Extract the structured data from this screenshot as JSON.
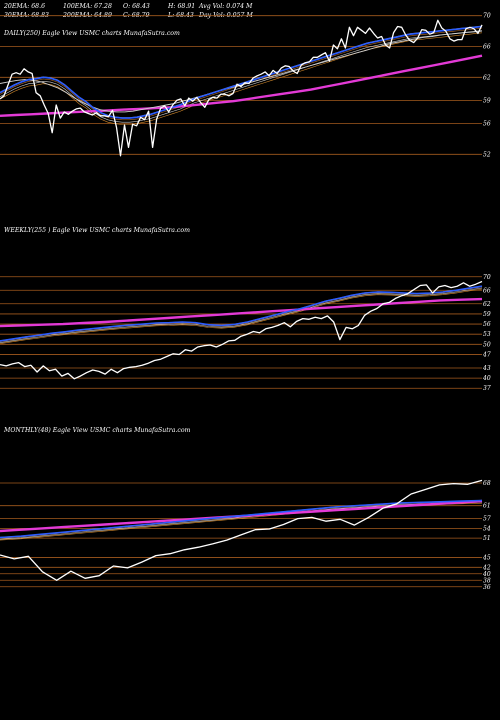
{
  "header": {
    "ema_lines": [
      [
        "20EMA: 68.6",
        "100EMA: 67.28",
        "O: 68.43",
        "H: 68.91",
        "Avg Vol: 0.074  M"
      ],
      [
        "30EMA: 68.83",
        "200EMA: 64.89",
        "C: 68.79",
        "L: 68.43",
        "Day Vol: 0.057  M"
      ]
    ]
  },
  "colors": {
    "background": "#000000",
    "price": "#ffffff",
    "ema_fast": "#2a5cff",
    "ema_slow": "#e33ad6",
    "ema_mid": "#cfcfcf",
    "ema_orange": "#d2882a",
    "level_line": "#a35a1e"
  },
  "chart_data": [
    {
      "type": "line",
      "name": "daily",
      "title": "DAILY(250) Eagle   View  USMC charts MunafaSutra.com",
      "y_ticks": [
        "70",
        "66",
        "62",
        "59",
        "56",
        "52"
      ],
      "ylim": [
        51,
        71
      ],
      "levels": [
        70,
        66,
        62,
        59,
        56,
        52
      ],
      "x_count": 250,
      "series": [
        {
          "values": [
            59.2,
            59.6,
            61.0,
            62.4,
            62.6,
            62.4,
            63.1,
            62.7,
            62.5,
            60.0,
            59.6,
            58.4,
            57.3,
            54.8,
            58.4,
            56.7,
            57.5,
            57.2,
            57.6,
            57.9,
            58.0,
            57.5,
            57.3,
            57.1,
            57.4,
            57.0,
            57.0,
            56.9,
            57.7,
            55.5,
            51.8,
            55.8,
            52.9,
            55.9,
            55.7,
            56.8,
            56.5,
            57.6,
            52.9,
            56.6,
            58.0,
            58.3,
            57.5,
            58.4,
            59.0,
            59.2,
            58.3,
            59.3,
            58.9,
            59.4,
            58.7,
            58.1,
            59.1,
            59.4,
            59.3,
            59.8,
            59.8,
            59.6,
            59.9,
            61.1,
            60.8,
            61.3,
            61.2,
            61.9,
            62.2,
            62.4,
            62.7,
            62.2,
            62.9,
            62.5,
            63.2,
            63.5,
            63.4,
            62.8,
            62.5,
            63.6,
            63.9,
            64.0,
            64.6,
            64.6,
            64.9,
            65.2,
            64.1,
            66.2,
            65.7,
            67.0,
            65.8,
            68.5,
            67.4,
            68.5,
            68.1,
            67.7,
            68.4,
            67.7,
            67.1,
            67.3,
            66.2,
            65.8,
            67.8,
            68.6,
            68.5,
            67.5,
            66.8,
            66.5,
            67.1,
            68.2,
            68.1,
            67.6,
            67.8,
            69.4,
            68.4,
            68.0,
            67.0,
            66.7,
            66.9,
            66.9,
            68.3,
            68.5,
            68.3,
            67.7,
            68.8
          ]
        },
        {
          "values": [
            60.0,
            60.5,
            61.0,
            61.4,
            61.7,
            61.8,
            62.0,
            61.9,
            61.6,
            61.0,
            60.2,
            59.4,
            58.8,
            58.0,
            57.4,
            57.0,
            56.8,
            56.7,
            56.7,
            56.8,
            57.0,
            57.2,
            57.5,
            57.8,
            58.1,
            58.4,
            58.8,
            59.2,
            59.5,
            59.8,
            60.1,
            60.4,
            60.7,
            61.0,
            61.3,
            61.6,
            61.9,
            62.2,
            62.5,
            62.8,
            63.1,
            63.4,
            63.7,
            64.0,
            64.3,
            64.6,
            64.9,
            65.2,
            65.5,
            65.8,
            66.1,
            66.4,
            66.6,
            66.8,
            67.0,
            67.2,
            67.4,
            67.6,
            67.7,
            67.8,
            67.9,
            68.0,
            68.1,
            68.2,
            68.3,
            68.4,
            68.5,
            68.6
          ]
        },
        {
          "values": [
            61.2,
            61.4,
            61.6,
            61.7,
            61.6,
            61.4,
            61.0,
            60.6,
            60.0,
            59.3,
            58.7,
            58.2,
            57.8,
            57.6,
            57.5,
            57.5,
            57.6,
            57.8,
            58.0,
            58.2,
            58.4,
            58.6,
            58.9,
            59.2,
            59.5,
            59.8,
            60.1,
            60.4,
            60.7,
            61.0,
            61.3,
            61.6,
            61.9,
            62.2,
            62.5,
            62.8,
            63.1,
            63.4,
            63.7,
            64.0,
            64.3,
            64.6,
            64.9,
            65.2,
            65.5,
            65.8,
            66.1,
            66.4,
            66.6,
            66.8,
            67.0,
            67.2,
            67.3,
            67.5,
            67.6,
            67.7,
            67.8,
            67.9,
            68.0
          ]
        },
        {
          "values": [
            57.0,
            57.1,
            57.2,
            57.3,
            57.4,
            57.5,
            57.6,
            57.7,
            57.8,
            57.9,
            58.0,
            58.1,
            58.3,
            58.5,
            58.7,
            58.9,
            59.2,
            59.5,
            59.8,
            60.1,
            60.4,
            60.8,
            61.2,
            61.6,
            62.0,
            62.4,
            62.8,
            63.2,
            63.6,
            64.0,
            64.4,
            64.8
          ]
        }
      ]
    },
    {
      "type": "line",
      "name": "weekly",
      "title": "WEEKLY(255                       ) Eagle   View  USMC charts MunafaSutra.com",
      "y_ticks": [
        "70",
        "66",
        "62",
        "59",
        "56",
        "53",
        "50",
        "47",
        "43",
        "40",
        "37"
      ],
      "ylim": [
        35,
        72
      ],
      "levels": [
        70,
        66,
        62,
        59,
        56,
        53,
        50,
        47,
        43,
        40,
        37
      ],
      "x_count": 255,
      "series": [
        {
          "values": [
            44.0,
            43.6,
            44.2,
            44.6,
            43.4,
            43.8,
            41.8,
            43.6,
            42.2,
            42.6,
            40.6,
            41.4,
            39.8,
            40.6,
            41.6,
            42.4,
            42.0,
            41.2,
            42.6,
            41.6,
            42.8,
            43.2,
            43.4,
            43.8,
            44.4,
            45.2,
            45.6,
            46.4,
            47.2,
            47.0,
            48.4,
            48.0,
            49.2,
            49.6,
            49.8,
            49.2,
            50.0,
            51.0,
            51.2,
            52.4,
            53.0,
            53.8,
            53.4,
            54.6,
            55.0,
            55.6,
            56.4,
            55.2,
            56.8,
            57.6,
            57.4,
            58.0,
            57.6,
            58.4,
            56.6,
            51.4,
            55.0,
            54.6,
            55.6,
            58.6,
            59.8,
            60.6,
            62.0,
            62.4,
            63.6,
            64.4,
            65.0,
            66.2,
            67.4,
            67.6,
            65.2,
            67.0,
            67.4,
            66.8,
            67.2,
            68.2,
            67.2,
            67.8,
            68.6
          ]
        },
        {
          "values": [
            51.0,
            51.6,
            52.2,
            52.7,
            53.3,
            53.7,
            54.2,
            54.6,
            55.0,
            55.4,
            55.7,
            56.0,
            56.3,
            56.4,
            56.6,
            56.4,
            55.8,
            55.6,
            55.9,
            56.6,
            57.6,
            58.6,
            59.6,
            60.5,
            61.6,
            62.8,
            63.6,
            64.5,
            65.2,
            65.5,
            65.4,
            65.2,
            65.0,
            65.2,
            65.5,
            66.0,
            66.6,
            67.2
          ]
        },
        {
          "values": [
            55.4,
            55.6,
            55.8,
            56.0,
            56.3,
            56.6,
            57.0,
            57.4,
            57.8,
            58.2,
            58.6,
            59.0,
            59.4,
            59.8,
            60.2,
            60.6,
            61.0,
            61.4,
            61.8,
            62.2,
            62.6,
            63.0,
            63.2,
            63.4
          ]
        }
      ]
    },
    {
      "type": "line",
      "name": "monthly",
      "title": "MONTHLY(48) Eagle   View  USMC charts MunafaSutra.com",
      "y_ticks": [
        "68",
        "61",
        "57",
        "54",
        "51",
        "45",
        "42",
        "40",
        "38",
        "36"
      ],
      "ylim": [
        35,
        72
      ],
      "levels": [
        68,
        61,
        57,
        54,
        51,
        45,
        42,
        40,
        38,
        36
      ],
      "x_count": 48,
      "series": [
        {
          "values": [
            45.8,
            44.6,
            45.4,
            40.6,
            38.0,
            40.8,
            38.6,
            39.4,
            42.4,
            41.8,
            43.6,
            45.6,
            46.2,
            47.4,
            48.2,
            49.2,
            50.4,
            52.0,
            53.6,
            53.8,
            55.2,
            57.0,
            57.4,
            56.2,
            56.8,
            55.0,
            57.4,
            60.2,
            61.6,
            64.6,
            66.0,
            67.4,
            67.8,
            67.6,
            68.8
          ]
        },
        {
          "values": [
            51.2,
            51.6,
            52.2,
            52.8,
            53.4,
            54.0,
            54.6,
            55.2,
            55.8,
            56.4,
            57.0,
            57.6,
            58.2,
            58.8,
            59.4,
            60.0,
            60.6,
            61.0,
            61.4,
            61.8,
            62.0,
            62.2,
            62.4,
            62.6
          ]
        },
        {
          "values": [
            53.2,
            53.6,
            54.0,
            54.4,
            54.8,
            55.2,
            55.6,
            56.0,
            56.4,
            56.8,
            57.2,
            57.6,
            58.0,
            58.4,
            58.8,
            59.2,
            59.6,
            60.0,
            60.4,
            60.8,
            61.2,
            61.6,
            62.0,
            62.4
          ]
        }
      ]
    }
  ]
}
